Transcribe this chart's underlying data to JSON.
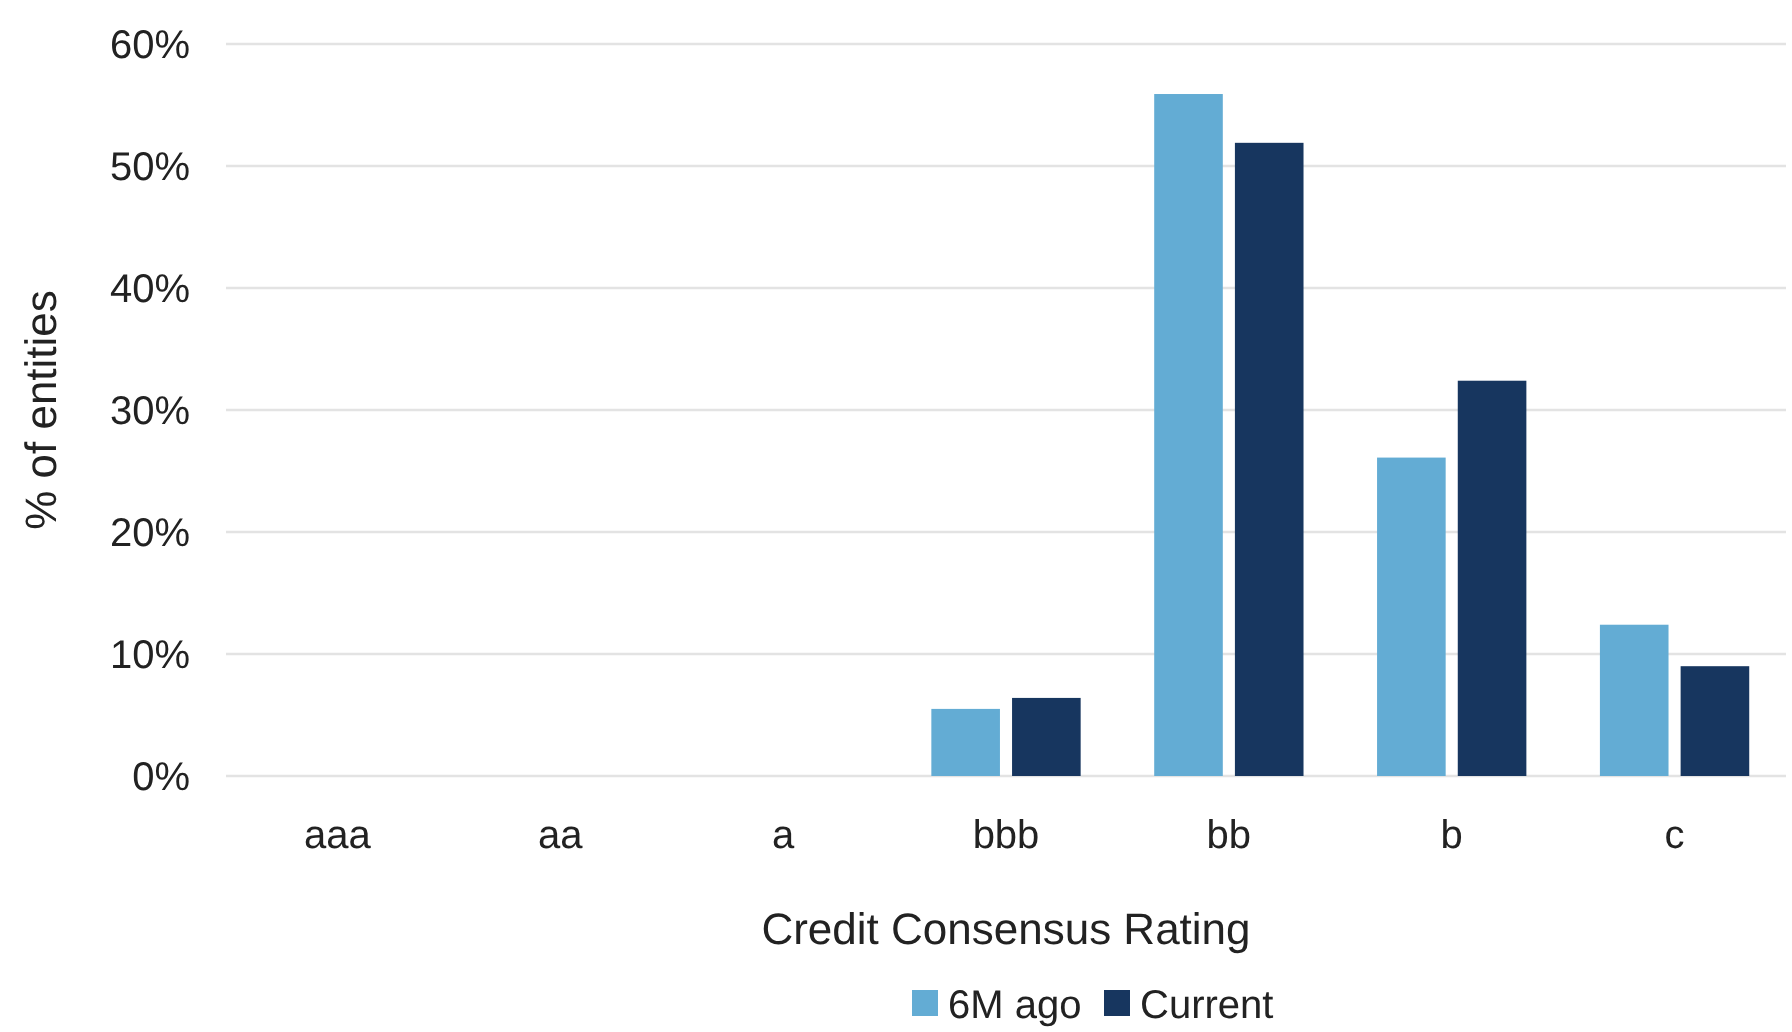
{
  "chart_data": {
    "type": "bar",
    "xlabel": "Credit Consensus Rating",
    "ylabel": "% of entities",
    "categories": [
      "aaa",
      "aa",
      "a",
      "bbb",
      "bb",
      "b",
      "c"
    ],
    "series": [
      {
        "name": "6M ago",
        "color": "#63acd4",
        "values": [
          0,
          0,
          0,
          5.5,
          55.9,
          26.1,
          12.4
        ]
      },
      {
        "name": "Current",
        "color": "#17365f",
        "values": [
          0,
          0,
          0,
          6.4,
          51.9,
          32.4,
          9.0
        ]
      }
    ],
    "ylim": [
      0,
      60
    ],
    "yticks": [
      {
        "value": 0,
        "label": "0%"
      },
      {
        "value": 10,
        "label": "10%"
      },
      {
        "value": 20,
        "label": "20%"
      },
      {
        "value": 30,
        "label": "30%"
      },
      {
        "value": 40,
        "label": "40%"
      },
      {
        "value": 50,
        "label": "50%"
      },
      {
        "value": 60,
        "label": "60%"
      }
    ],
    "grid": "y",
    "legend": "bottom"
  }
}
